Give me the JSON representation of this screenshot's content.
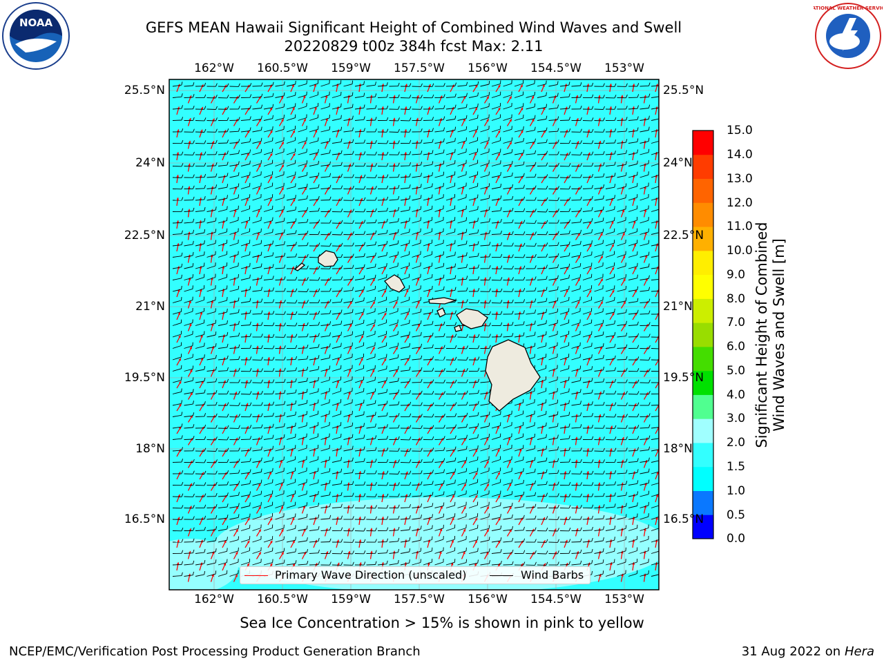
{
  "header": {
    "title": "GEFS MEAN Hawaii Significant Height of Combined Wind Waves and Swell",
    "subtitle": "20220829 t00z 384h fcst   Max: 2.11"
  },
  "logos": {
    "left": "NOAA",
    "right": "NATIONAL WEATHER SERVICE"
  },
  "map": {
    "lon_ticks": [
      "162°W",
      "160.5°W",
      "159°W",
      "157.5°W",
      "156°W",
      "154.5°W",
      "153°W"
    ],
    "lat_ticks": [
      "25.5°N",
      "24°N",
      "22.5°N",
      "21°N",
      "19.5°N",
      "18°N",
      "16.5°N"
    ],
    "ocean_color": "#33ffff",
    "land_color": "#eeebdf"
  },
  "legend": {
    "wave_direction": "Primary Wave Direction (unscaled)",
    "wind_barbs": "Wind Barbs",
    "wave_color": "#ff0000",
    "barb_color": "#000000"
  },
  "colorbar": {
    "label": "Significant Height of Combined Wind Waves and Swell [m]",
    "levels": [
      "0.0",
      "0.5",
      "1.0",
      "1.5",
      "2.0",
      "3.0",
      "4.0",
      "5.0",
      "6.0",
      "7.0",
      "8.0",
      "9.0",
      "10.0",
      "11.0",
      "12.0",
      "13.0",
      "14.0",
      "15.0"
    ],
    "colors": [
      "#0000ff",
      "#0a78ff",
      "#00ffff",
      "#33ffff",
      "#a0ffff",
      "#50ff90",
      "#00e000",
      "#44dd00",
      "#99dd00",
      "#ccee00",
      "#ffff00",
      "#ffee00",
      "#ffb000",
      "#ff8c00",
      "#ff6400",
      "#ff3c00",
      "#ff0000"
    ]
  },
  "footer": {
    "note": "Sea Ice Concentration > 15% is shown in pink to yellow",
    "credit": "NCEP/EMC/Verification Post Processing Product Generation Branch",
    "date": "31 Aug 2022 on",
    "host": "Hera"
  }
}
